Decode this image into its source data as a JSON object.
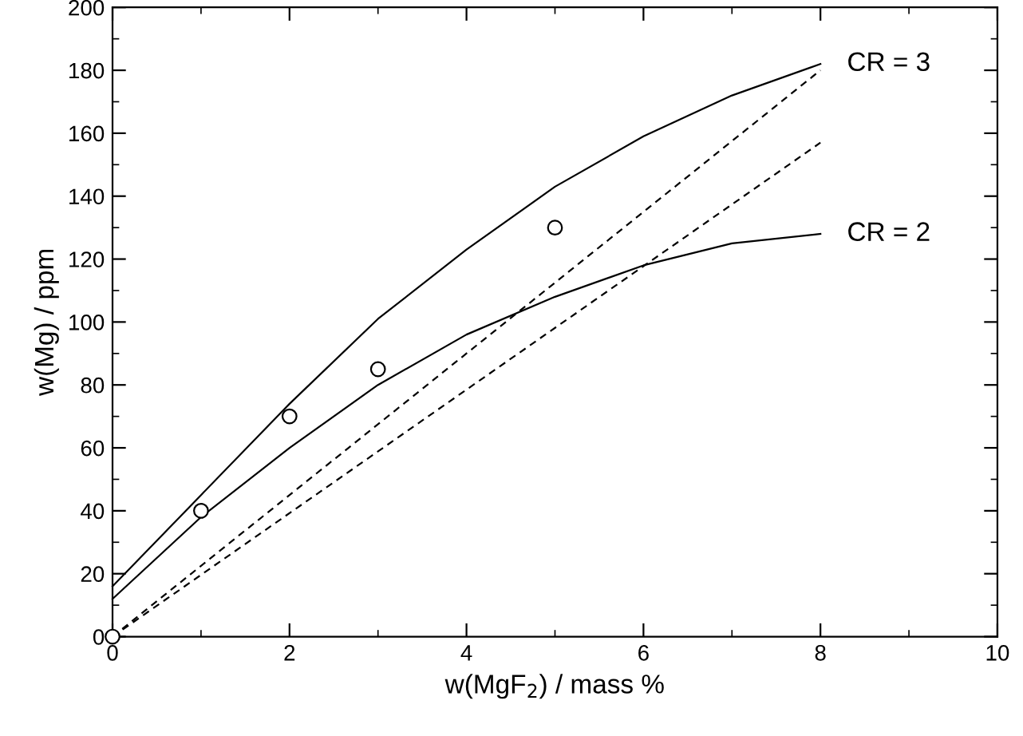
{
  "chart_data": {
    "type": "line",
    "xlabel": "w(MgF$_{2}$) / mass %",
    "ylabel": "w(Mg) / ppm",
    "xlim": [
      0,
      10
    ],
    "ylim": [
      0,
      200
    ],
    "xticks": [
      0,
      {
        "value": 1,
        "label": null
      },
      2,
      {
        "value": 3,
        "label": null
      },
      4,
      {
        "value": 5,
        "label": null
      },
      6,
      {
        "value": 7,
        "label": null
      },
      8,
      {
        "value": 9,
        "label": null
      },
      10
    ],
    "yticks": [
      0,
      {
        "value": 10,
        "label": null
      },
      20,
      {
        "value": 30,
        "label": null
      },
      40,
      {
        "value": 50,
        "label": null
      },
      60,
      {
        "value": 70,
        "label": null
      },
      80,
      {
        "value": 90,
        "label": null
      },
      100,
      {
        "value": 110,
        "label": null
      },
      120,
      {
        "value": 130,
        "label": null
      },
      140,
      {
        "value": 150,
        "label": null
      },
      160,
      {
        "value": 170,
        "label": null
      },
      180,
      {
        "value": 190,
        "label": null
      },
      200
    ],
    "grid": false,
    "legend": "right",
    "series": [
      {
        "name": "CR = 3",
        "color": "#000000",
        "line_style": "solid",
        "marker": "none",
        "x": [
          0,
          1,
          2,
          3,
          4,
          5,
          6,
          7,
          8
        ],
        "values": [
          16,
          45,
          74,
          101,
          123,
          143,
          159,
          172,
          182
        ]
      },
      {
        "name": "CR = 2",
        "color": "#000000",
        "line_style": "solid",
        "marker": "none",
        "x": [
          0,
          1,
          2,
          3,
          4,
          5,
          6,
          7,
          8
        ],
        "values": [
          12,
          38,
          60,
          80,
          96,
          108,
          118,
          125,
          128
        ]
      },
      {
        "color": "#000000",
        "line_style": "dashed",
        "marker": "none",
        "x": [
          0,
          8
        ],
        "values": [
          0,
          180
        ]
      },
      {
        "color": "#000000",
        "line_style": "dashed",
        "marker": "none",
        "x": [
          0,
          8
        ],
        "values": [
          0,
          157
        ]
      },
      {
        "type": "scatter",
        "color": "#000000",
        "marker": "circle",
        "x": [
          0,
          1,
          2,
          3,
          5
        ],
        "values": [
          0,
          40,
          70,
          85,
          130
        ]
      }
    ]
  }
}
